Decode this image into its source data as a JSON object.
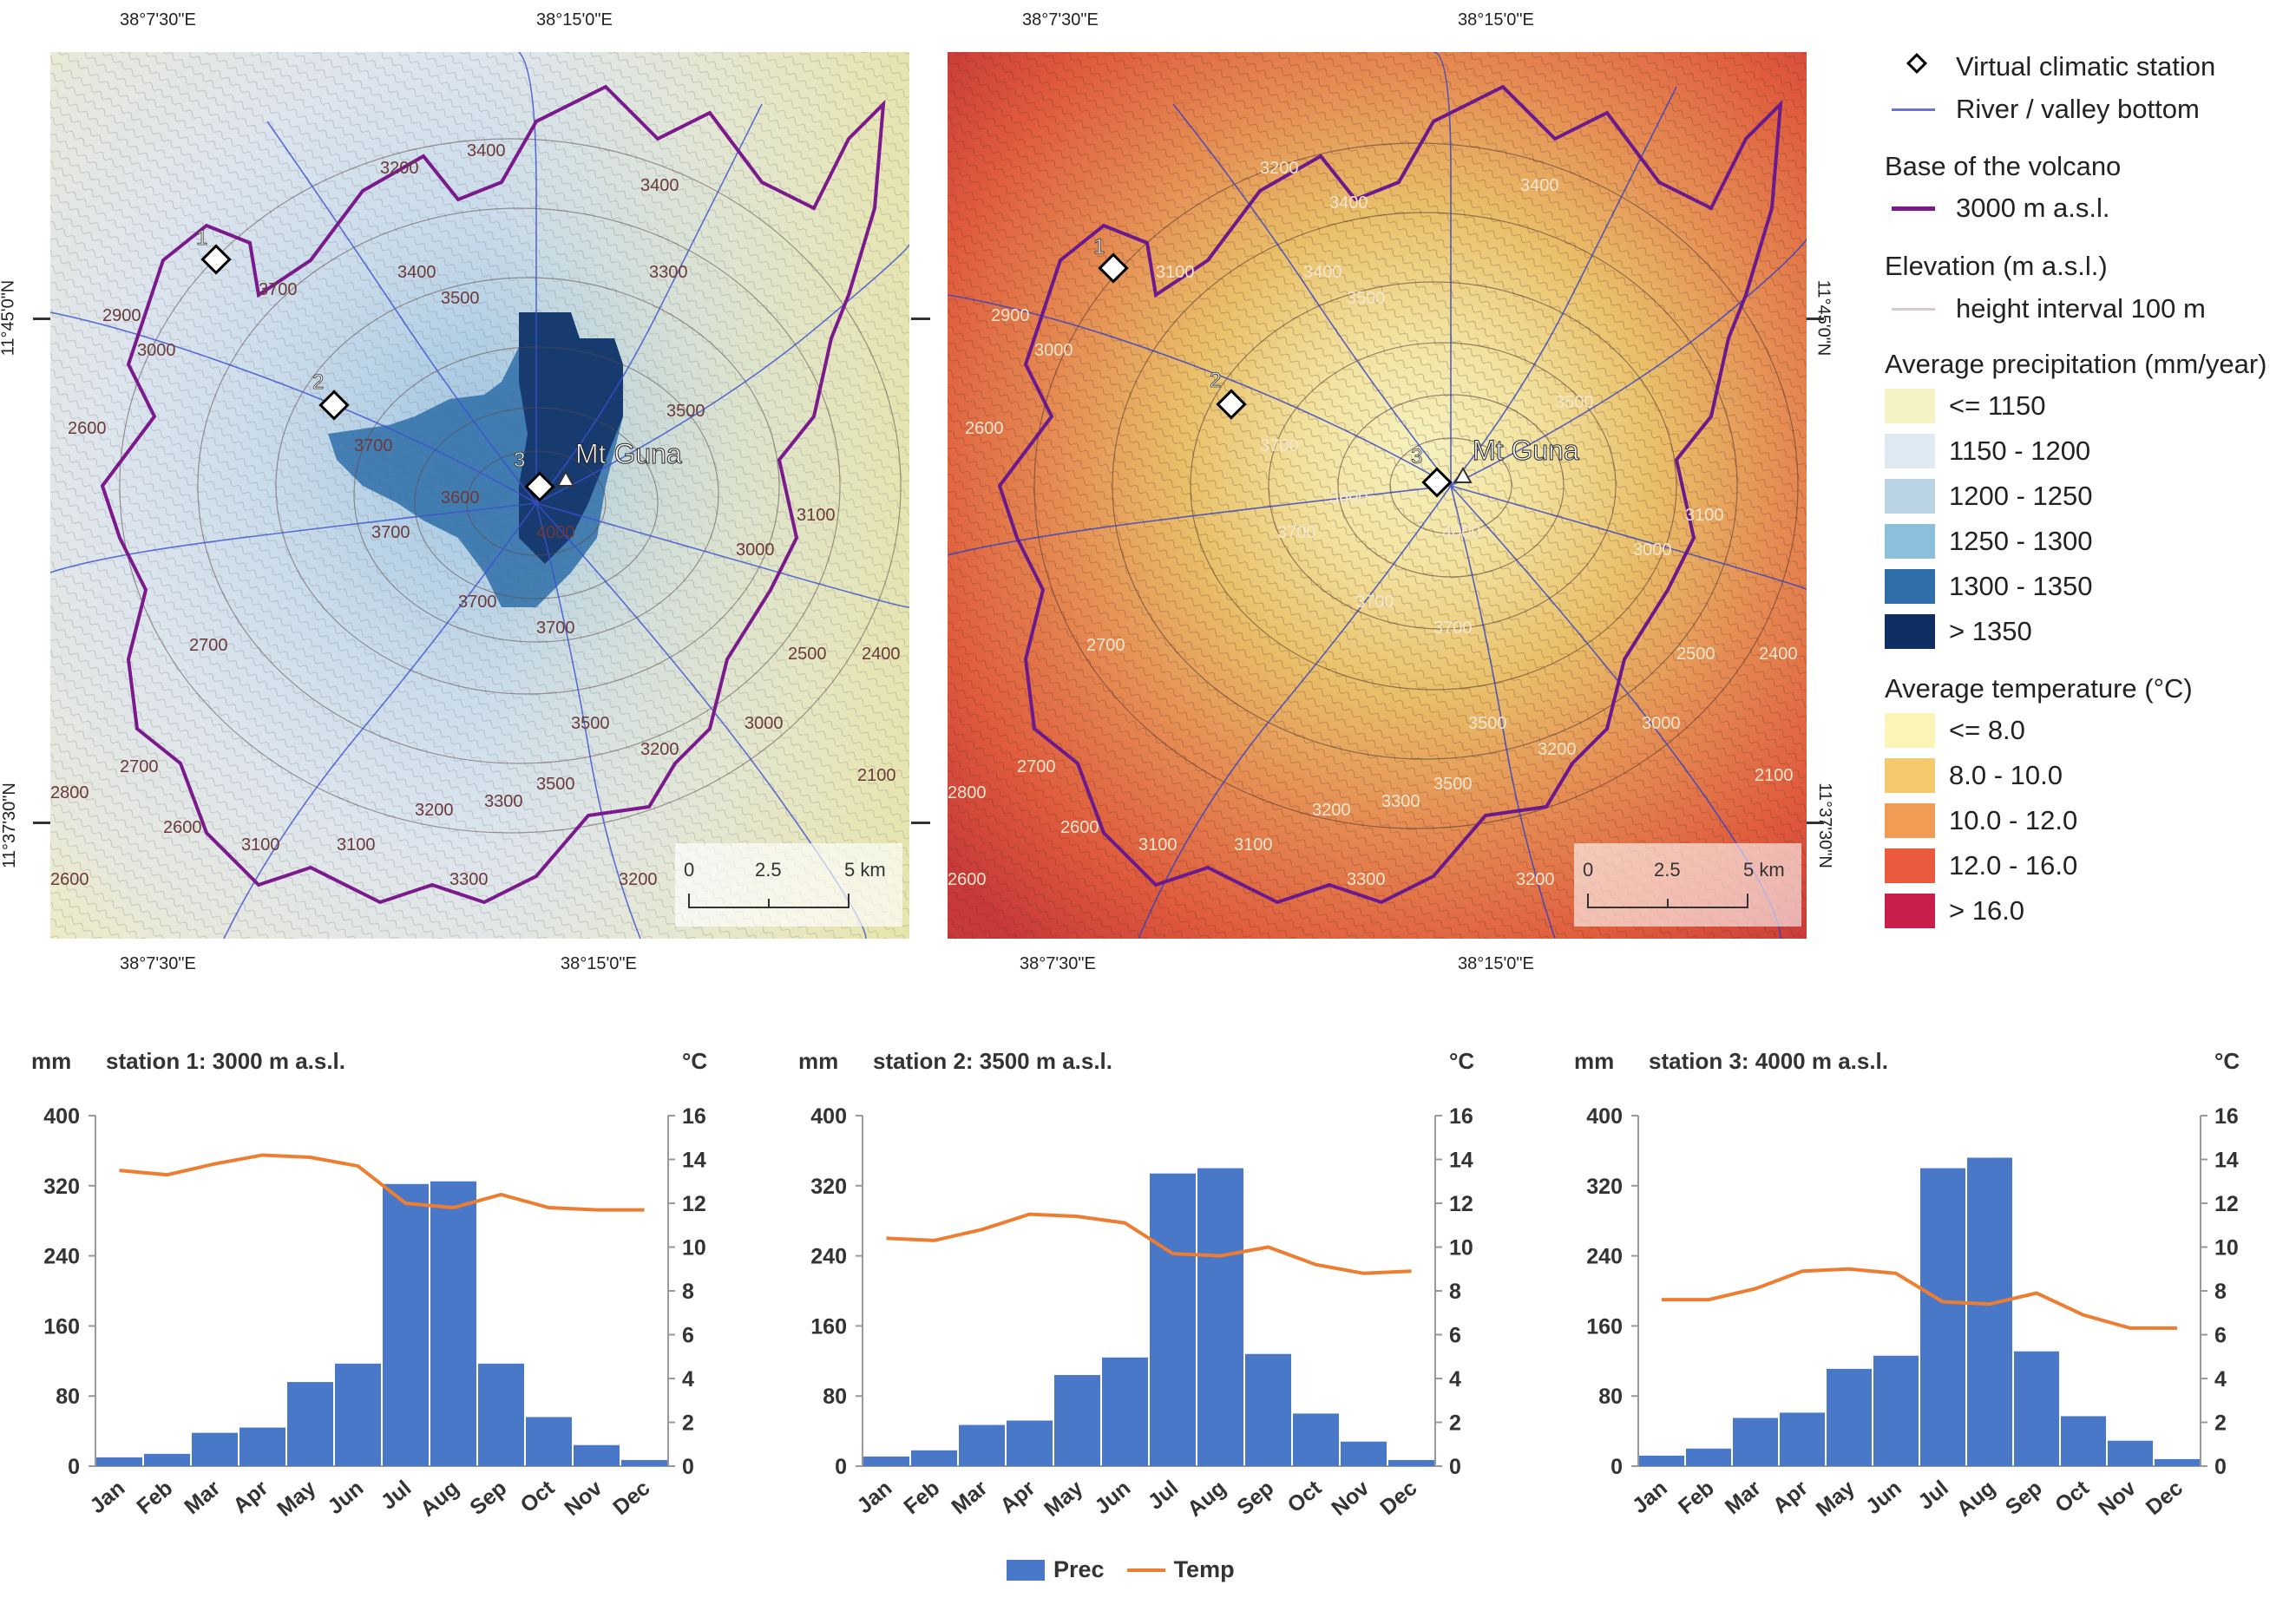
{
  "maps": [
    {
      "id": "precip",
      "coords": {
        "top_lon1": "38°7'30\"E",
        "top_lon2": "38°15'0\"E",
        "bottom_lon1": "38°7'30\"E",
        "bottom_lon2": "38°15'0\"E",
        "lat1": "11°45'0\"N",
        "lat2": "11°37'30\"N"
      },
      "peak": "Mt Guna",
      "stations": [
        "1",
        "2",
        "3"
      ],
      "contours": [
        "3200",
        "3400",
        "3400",
        "3300",
        "2900",
        "3000",
        "3700",
        "3400",
        "3500",
        "2600",
        "3500",
        "3700",
        "3600",
        "3700",
        "4000",
        "3100",
        "3000",
        "2700",
        "3700",
        "3700",
        "2500",
        "2400",
        "2800",
        "2700",
        "2600",
        "3100",
        "3100",
        "3200",
        "3300",
        "3500",
        "3000",
        "3200",
        "2100",
        "2600",
        "3500",
        "3200",
        "3300"
      ],
      "scale": {
        "zero": "0",
        "mid": "2.5",
        "end": "5 km"
      }
    },
    {
      "id": "temp",
      "coords": {
        "top_lon1": "38°7'30\"E",
        "top_lon2": "38°15'0\"E",
        "bottom_lon1": "38°7'30\"E",
        "bottom_lon2": "38°15'0\"E",
        "lat1": "11°45'0\"N",
        "lat2": "11°37'30\"N"
      },
      "peak": "Mt Guna",
      "stations": [
        "1",
        "2",
        "3"
      ],
      "contours": [
        "3200",
        "3400",
        "3400",
        "3100",
        "2900",
        "3000",
        "3400",
        "3500",
        "3500",
        "2600",
        "3700",
        "3600",
        "3700",
        "4000",
        "3100",
        "3000",
        "2700",
        "3700",
        "3700",
        "2500",
        "2400",
        "2800",
        "2700",
        "2600",
        "3100",
        "3100",
        "3200",
        "3300",
        "3500",
        "3000",
        "3200",
        "2100",
        "2600",
        "3500",
        "3200",
        "3300"
      ],
      "scale": {
        "zero": "0",
        "mid": "2.5",
        "end": "5 km"
      }
    }
  ],
  "legend": {
    "station": "Virtual climatic station",
    "river": "River / valley bottom",
    "base_head": "Base of the volcano",
    "base_item": "3000 m a.s.l.",
    "elev_head": "Elevation (m a.s.l.)",
    "elev_item": "height interval 100 m",
    "precip_head": "Average precipitation (mm/year)",
    "precip_items": [
      {
        "label": "<= 1150",
        "color": "#f4f3c4"
      },
      {
        "label": "1150 - 1200",
        "color": "#dfe9f2"
      },
      {
        "label": "1200 - 1250",
        "color": "#bad4e6"
      },
      {
        "label": "1250 - 1300",
        "color": "#8cbfdc"
      },
      {
        "label": "1300 - 1350",
        "color": "#2f6ea8"
      },
      {
        "label": "> 1350",
        "color": "#0f2f64"
      }
    ],
    "temp_head": "Average temperature (°C)",
    "temp_items": [
      {
        "label": "<= 8.0",
        "color": "#fbf5b8"
      },
      {
        "label": "8.0 - 10.0",
        "color": "#f4c96c"
      },
      {
        "label": "10.0 - 12.0",
        "color": "#f19c55"
      },
      {
        "label": "12.0 - 16.0",
        "color": "#ea5a3c"
      },
      {
        "label": "> 16.0",
        "color": "#c81e4a"
      }
    ]
  },
  "charts": {
    "left_unit": "mm",
    "right_unit": "°C",
    "legend_prec": "Prec",
    "legend_temp": "Temp",
    "colors": {
      "prec": "#4a78c8",
      "temp": "#ec7d31"
    }
  },
  "chart_data": [
    {
      "type": "bar",
      "title": "station 1: 3000 m a.s.l.",
      "categories": [
        "Jan",
        "Feb",
        "Mar",
        "Apr",
        "May",
        "Jun",
        "Jul",
        "Aug",
        "Sep",
        "Oct",
        "Nov",
        "Dec"
      ],
      "ylim": [
        0,
        400
      ],
      "yticks": [
        "0",
        "80",
        "160",
        "240",
        "320",
        "400"
      ],
      "y2lim": [
        0,
        16
      ],
      "y2ticks": [
        "0",
        "2",
        "4",
        "6",
        "8",
        "10",
        "12",
        "14",
        "16"
      ],
      "series": [
        {
          "name": "Prec",
          "type": "bar",
          "values": [
            10,
            14,
            38,
            44,
            96,
            117,
            322,
            325,
            117,
            56,
            24,
            7
          ]
        },
        {
          "name": "Temp",
          "type": "line",
          "axis": "right",
          "values": [
            13.5,
            13.3,
            13.8,
            14.2,
            14.1,
            13.7,
            12.0,
            11.8,
            12.4,
            11.8,
            11.7,
            11.7
          ]
        }
      ]
    },
    {
      "type": "bar",
      "title": "station 2: 3500 m a.s.l.",
      "categories": [
        "Jan",
        "Feb",
        "Mar",
        "Apr",
        "May",
        "Jun",
        "Jul",
        "Aug",
        "Sep",
        "Oct",
        "Nov",
        "Dec"
      ],
      "ylim": [
        0,
        400
      ],
      "yticks": [
        "0",
        "80",
        "160",
        "240",
        "320",
        "400"
      ],
      "y2lim": [
        0,
        16
      ],
      "y2ticks": [
        "0",
        "2",
        "4",
        "6",
        "8",
        "10",
        "12",
        "14",
        "16"
      ],
      "series": [
        {
          "name": "Prec",
          "type": "bar",
          "values": [
            11,
            18,
            47,
            52,
            104,
            124,
            334,
            340,
            128,
            60,
            28,
            7
          ]
        },
        {
          "name": "Temp",
          "type": "line",
          "axis": "right",
          "values": [
            10.4,
            10.3,
            10.8,
            11.5,
            11.4,
            11.1,
            9.7,
            9.6,
            10.0,
            9.2,
            8.8,
            8.9
          ]
        }
      ]
    },
    {
      "type": "bar",
      "title": "station 3: 4000 m a.s.l.",
      "categories": [
        "Jan",
        "Feb",
        "Mar",
        "Apr",
        "May",
        "Jun",
        "Jul",
        "Aug",
        "Sep",
        "Oct",
        "Nov",
        "Dec"
      ],
      "ylim": [
        0,
        400
      ],
      "yticks": [
        "0",
        "80",
        "160",
        "240",
        "320",
        "400"
      ],
      "y2lim": [
        0,
        16
      ],
      "y2ticks": [
        "0",
        "2",
        "4",
        "6",
        "8",
        "10",
        "12",
        "14",
        "16"
      ],
      "series": [
        {
          "name": "Prec",
          "type": "bar",
          "values": [
            12,
            20,
            55,
            61,
            111,
            126,
            340,
            352,
            131,
            57,
            29,
            8
          ]
        },
        {
          "name": "Temp",
          "type": "line",
          "axis": "right",
          "values": [
            7.6,
            7.6,
            8.1,
            8.9,
            9.0,
            8.8,
            7.5,
            7.4,
            7.9,
            6.9,
            6.3,
            6.3
          ]
        }
      ]
    }
  ]
}
